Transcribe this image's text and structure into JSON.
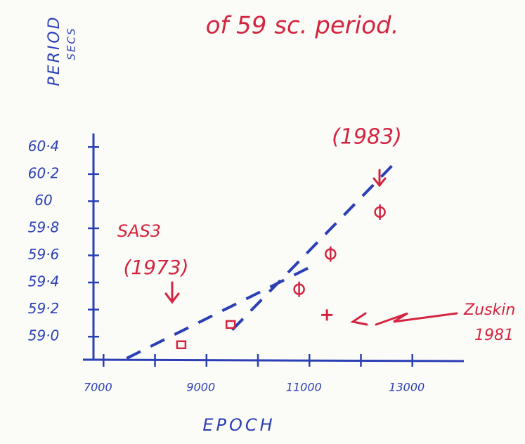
{
  "chart_data": {
    "type": "scatter",
    "title": "of 59 sc. period.",
    "y_label": [
      "PERIOD",
      "SECS"
    ],
    "x_label": "EPOCH",
    "xlim": [
      6600,
      14000
    ],
    "ylim": [
      58.83,
      60.5
    ],
    "xticks": [
      7000,
      9000,
      11000,
      13000
    ],
    "xminorticks": [
      8000,
      10000,
      12000
    ],
    "yticks": [
      {
        "value": 59,
        "label": "59·0"
      },
      {
        "value": 59.2,
        "label": "59·2"
      },
      {
        "value": 59.4,
        "label": "59·4"
      },
      {
        "value": 59.6,
        "label": "59·6"
      },
      {
        "value": 59.8,
        "label": "59·8"
      },
      60,
      {
        "value": 60.2,
        "label": "60·2"
      },
      {
        "value": 60.4,
        "label": "60·4"
      }
    ],
    "axis_color": "#2b3fb5",
    "series": [
      {
        "marker": "square",
        "color": "#d4243f",
        "x": [
          8510,
          9470
        ],
        "y": [
          58.94,
          59.09
        ]
      },
      {
        "marker": "phi",
        "color": "#d4243f",
        "x": [
          10800,
          11410,
          12370
        ],
        "y": [
          59.35,
          59.61,
          59.92
        ]
      },
      {
        "marker": "plus",
        "color": "#d4243f",
        "x": [
          11340
        ],
        "y": [
          59.16
        ]
      }
    ],
    "lines": [
      {
        "color": "#2b3fb5",
        "x": [
          7450,
          11100
        ],
        "y": [
          58.84,
          59.53
        ]
      },
      {
        "color": "#2b3fb5",
        "x": [
          9500,
          12600
        ],
        "y": [
          59.05,
          60.26
        ]
      }
    ],
    "annotations": [
      "SAS3",
      "(1973)",
      "(1983)",
      "Zuskin",
      "1981"
    ]
  }
}
